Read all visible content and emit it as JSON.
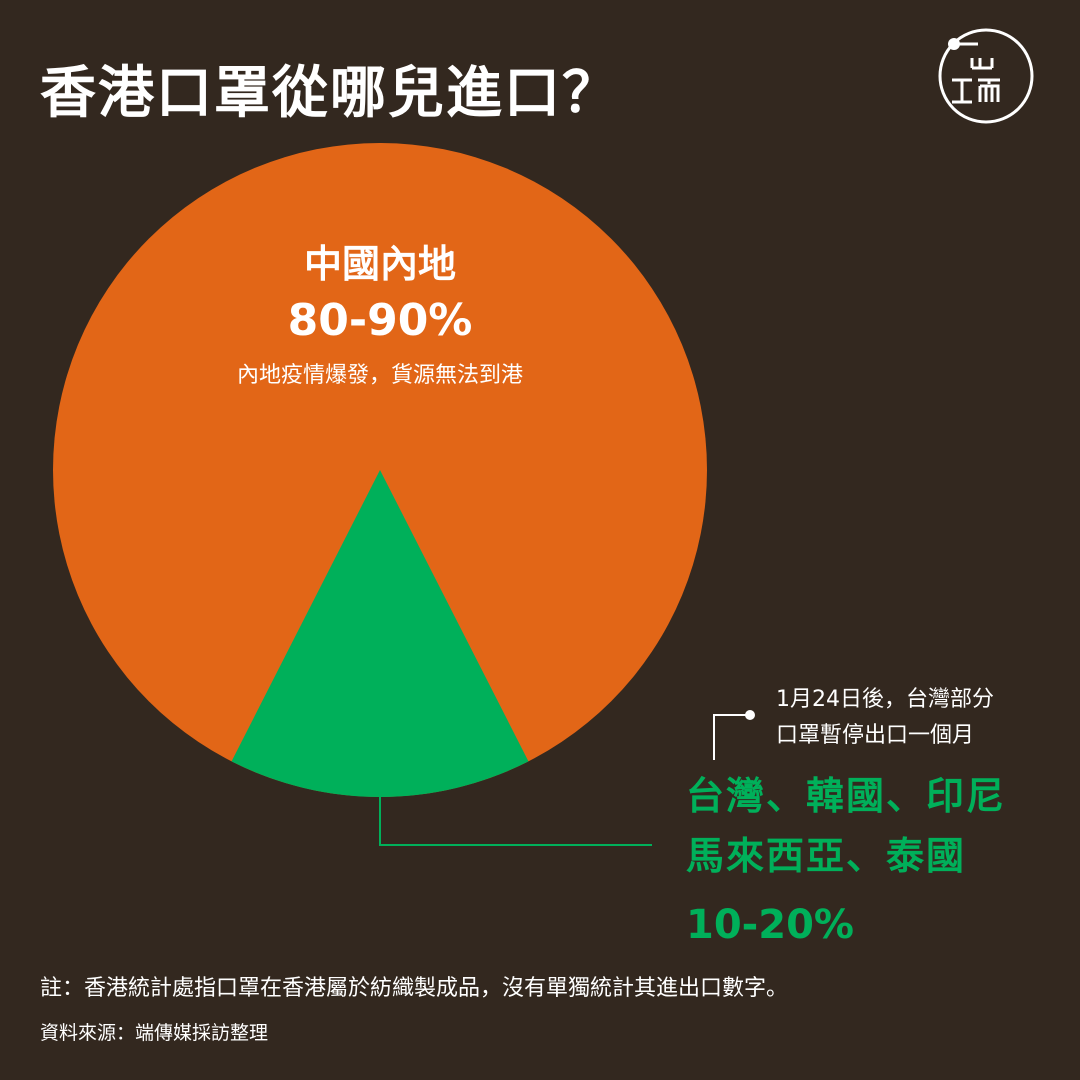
{
  "title": "香港口罩從哪兒進口？",
  "logo": {
    "name": "initium-logo",
    "text": "ェ而"
  },
  "colors": {
    "background": "#33281f",
    "mainland": "#e26617",
    "others": "#00b05a",
    "text": "#ffffff"
  },
  "labels": {
    "mainland_name": "中國內地",
    "mainland_range": "80-90%",
    "mainland_note": "內地疫情爆發，貨源無法到港",
    "others_line1": "台灣、韓國、印尼",
    "others_line2": "馬來西亞、泰國",
    "others_range": "10-20%",
    "taiwan_note_line1": "1月24日後，台灣部分",
    "taiwan_note_line2": "口罩暫停出口一個月"
  },
  "footnote": "註：香港統計處指口罩在香港屬於紡織製成品，沒有單獨統計其進出口數字。",
  "source": "資料來源：端傳媒採訪整理",
  "chart_data": {
    "type": "pie",
    "title": "香港口罩從哪兒進口？",
    "slices": [
      {
        "label": "中國內地",
        "range": "80-90%",
        "value": 85,
        "color": "#e26617"
      },
      {
        "label": "台灣、韓國、印尼、馬來西亞、泰國",
        "range": "10-20%",
        "value": 15,
        "color": "#00b05a"
      }
    ]
  }
}
